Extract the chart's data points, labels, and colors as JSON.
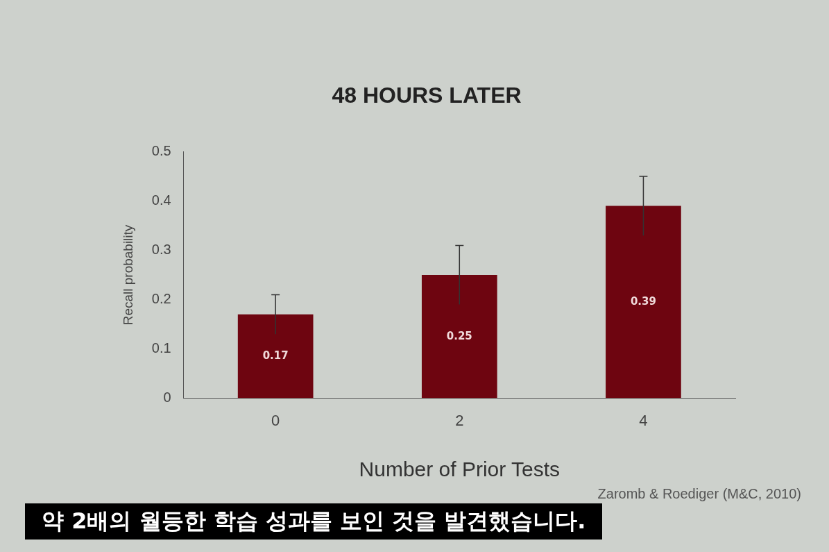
{
  "chart_data": {
    "type": "bar",
    "title": "48 HOURS LATER",
    "xlabel": "Number of Prior Tests",
    "ylabel": "Recall probability",
    "categories": [
      "0",
      "2",
      "4"
    ],
    "values": [
      0.17,
      0.25,
      0.39
    ],
    "errors": [
      0.04,
      0.06,
      0.06
    ],
    "color": "#6e0510",
    "ylim": [
      0,
      0.5
    ],
    "yticks": [
      0,
      0.1,
      0.2,
      0.3,
      0.4,
      0.5
    ],
    "grid": false,
    "legend": false,
    "data_labels": true,
    "annotations": [
      "Zaromb & Roediger (M&C, 2010)",
      "약 2배의 월등한 학습 성과를 보인 것을 발견했습니다."
    ]
  }
}
